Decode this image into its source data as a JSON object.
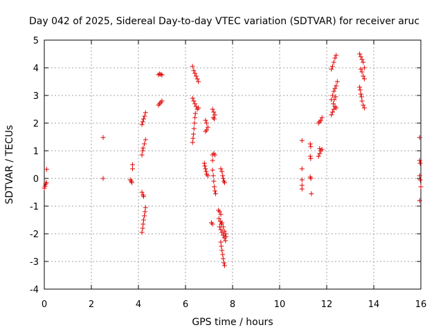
{
  "chart_data": {
    "type": "scatter",
    "title": "Day 042 of 2025, Sidereal Day-to-day VTEC variation (SDTVAR) for receiver aruc",
    "xlabel": "GPS time / hours",
    "ylabel": "SDTVAR / TECUs",
    "xlim": [
      0,
      16
    ],
    "ylim": [
      -4,
      5
    ],
    "xticks": [
      0,
      2,
      4,
      6,
      8,
      10,
      12,
      14,
      16
    ],
    "yticks": [
      -4,
      -3,
      -2,
      -1,
      0,
      1,
      2,
      3,
      4,
      5
    ],
    "grid": true,
    "marker": "plus",
    "color": "#e00000",
    "series": [
      {
        "points": [
          [
            0.0,
            -0.35
          ],
          [
            0.03,
            -0.28
          ],
          [
            0.06,
            -0.2
          ],
          [
            0.09,
            -0.15
          ],
          [
            0.1,
            0.33
          ],
          [
            2.5,
            1.48
          ],
          [
            2.5,
            0.0
          ],
          [
            3.65,
            -0.05
          ],
          [
            3.7,
            -0.1
          ],
          [
            3.72,
            -0.15
          ],
          [
            3.75,
            0.35
          ],
          [
            3.75,
            0.5
          ],
          [
            4.15,
            -0.5
          ],
          [
            4.2,
            -0.6
          ],
          [
            4.22,
            -0.65
          ],
          [
            4.15,
            -1.95
          ],
          [
            4.18,
            -1.8
          ],
          [
            4.2,
            -1.65
          ],
          [
            4.22,
            -1.5
          ],
          [
            4.25,
            -1.35
          ],
          [
            4.28,
            -1.2
          ],
          [
            4.3,
            -1.05
          ],
          [
            4.15,
            0.85
          ],
          [
            4.18,
            1.0
          ],
          [
            4.2,
            1.1
          ],
          [
            4.25,
            1.25
          ],
          [
            4.3,
            1.4
          ],
          [
            4.15,
            1.95
          ],
          [
            4.18,
            2.05
          ],
          [
            4.22,
            2.15
          ],
          [
            4.26,
            2.25
          ],
          [
            4.3,
            2.38
          ],
          [
            4.85,
            3.75
          ],
          [
            4.9,
            3.78
          ],
          [
            4.95,
            3.76
          ],
          [
            5.0,
            3.74
          ],
          [
            4.85,
            2.65
          ],
          [
            4.9,
            2.7
          ],
          [
            4.95,
            2.75
          ],
          [
            5.0,
            2.8
          ],
          [
            6.3,
            4.05
          ],
          [
            6.35,
            3.9
          ],
          [
            6.4,
            3.8
          ],
          [
            6.45,
            3.7
          ],
          [
            6.5,
            3.6
          ],
          [
            6.55,
            3.5
          ],
          [
            6.3,
            2.9
          ],
          [
            6.35,
            2.8
          ],
          [
            6.4,
            2.7
          ],
          [
            6.45,
            2.6
          ],
          [
            6.5,
            2.5
          ],
          [
            6.55,
            2.55
          ],
          [
            6.3,
            1.3
          ],
          [
            6.32,
            1.45
          ],
          [
            6.34,
            1.6
          ],
          [
            6.36,
            1.8
          ],
          [
            6.38,
            2.0
          ],
          [
            6.4,
            2.2
          ],
          [
            6.42,
            2.35
          ],
          [
            6.85,
            2.1
          ],
          [
            6.9,
            2.0
          ],
          [
            6.95,
            1.85
          ],
          [
            6.85,
            1.7
          ],
          [
            6.9,
            1.75
          ],
          [
            6.8,
            0.55
          ],
          [
            6.82,
            0.45
          ],
          [
            6.85,
            0.35
          ],
          [
            6.88,
            0.25
          ],
          [
            6.9,
            0.15
          ],
          [
            6.95,
            0.1
          ],
          [
            7.15,
            2.5
          ],
          [
            7.2,
            2.4
          ],
          [
            7.25,
            2.3
          ],
          [
            7.18,
            2.2
          ],
          [
            7.22,
            2.15
          ],
          [
            7.15,
            0.85
          ],
          [
            7.2,
            0.9
          ],
          [
            7.25,
            0.85
          ],
          [
            7.15,
            0.65
          ],
          [
            7.15,
            0.3
          ],
          [
            7.18,
            0.1
          ],
          [
            7.2,
            -0.1
          ],
          [
            7.22,
            -0.3
          ],
          [
            7.25,
            -0.45
          ],
          [
            7.28,
            -0.55
          ],
          [
            7.1,
            -1.6
          ],
          [
            7.15,
            -1.65
          ],
          [
            7.4,
            -1.15
          ],
          [
            7.45,
            -1.2
          ],
          [
            7.5,
            -1.3
          ],
          [
            7.42,
            -1.45
          ],
          [
            7.48,
            -1.55
          ],
          [
            7.52,
            -1.65
          ],
          [
            7.45,
            -1.75
          ],
          [
            7.5,
            -1.85
          ],
          [
            7.55,
            -1.95
          ],
          [
            7.6,
            -2.05
          ],
          [
            7.65,
            -2.15
          ],
          [
            7.7,
            -2.25
          ],
          [
            7.5,
            -2.3
          ],
          [
            7.52,
            -2.45
          ],
          [
            7.55,
            -2.6
          ],
          [
            7.58,
            -2.75
          ],
          [
            7.6,
            -2.9
          ],
          [
            7.63,
            -3.05
          ],
          [
            7.66,
            -3.15
          ],
          [
            7.55,
            -1.6
          ],
          [
            7.6,
            -1.75
          ],
          [
            7.65,
            -1.9
          ],
          [
            7.7,
            -2.0
          ],
          [
            7.72,
            -2.1
          ],
          [
            7.5,
            0.35
          ],
          [
            7.55,
            0.25
          ],
          [
            7.58,
            0.1
          ],
          [
            7.6,
            0.0
          ],
          [
            7.63,
            -0.1
          ],
          [
            7.66,
            -0.15
          ],
          [
            10.95,
            1.37
          ],
          [
            10.95,
            0.35
          ],
          [
            10.95,
            -0.05
          ],
          [
            10.95,
            -0.25
          ],
          [
            10.95,
            -0.38
          ],
          [
            11.3,
            1.25
          ],
          [
            11.32,
            1.15
          ],
          [
            11.3,
            0.8
          ],
          [
            11.32,
            0.72
          ],
          [
            11.3,
            0.05
          ],
          [
            11.33,
            0.0
          ],
          [
            11.35,
            -0.55
          ],
          [
            11.65,
            2.0
          ],
          [
            11.7,
            2.05
          ],
          [
            11.75,
            2.1
          ],
          [
            11.8,
            2.2
          ],
          [
            11.65,
            0.8
          ],
          [
            11.7,
            0.9
          ],
          [
            11.75,
            1.0
          ],
          [
            11.8,
            1.05
          ],
          [
            11.7,
            1.08
          ],
          [
            12.2,
            3.95
          ],
          [
            12.25,
            4.05
          ],
          [
            12.3,
            4.2
          ],
          [
            12.35,
            4.35
          ],
          [
            12.4,
            4.45
          ],
          [
            12.2,
            2.85
          ],
          [
            12.25,
            3.0
          ],
          [
            12.3,
            3.15
          ],
          [
            12.35,
            3.25
          ],
          [
            12.4,
            3.35
          ],
          [
            12.45,
            3.5
          ],
          [
            12.2,
            2.3
          ],
          [
            12.25,
            2.4
          ],
          [
            12.3,
            2.5
          ],
          [
            12.35,
            2.6
          ],
          [
            12.4,
            2.55
          ],
          [
            12.28,
            2.7
          ],
          [
            12.32,
            2.85
          ],
          [
            12.38,
            2.95
          ],
          [
            13.4,
            4.5
          ],
          [
            13.45,
            4.4
          ],
          [
            13.5,
            4.3
          ],
          [
            13.55,
            4.2
          ],
          [
            13.6,
            4.0
          ],
          [
            13.45,
            3.95
          ],
          [
            13.5,
            3.85
          ],
          [
            13.55,
            3.7
          ],
          [
            13.6,
            3.6
          ],
          [
            13.4,
            3.3
          ],
          [
            13.42,
            3.2
          ],
          [
            13.45,
            3.05
          ],
          [
            13.48,
            2.95
          ],
          [
            13.5,
            2.8
          ],
          [
            13.55,
            2.65
          ],
          [
            13.6,
            2.55
          ],
          [
            15.95,
            1.48
          ],
          [
            15.95,
            0.65
          ],
          [
            15.97,
            0.55
          ],
          [
            15.95,
            0.1
          ],
          [
            15.97,
            -0.05
          ],
          [
            16.0,
            -0.3
          ],
          [
            15.95,
            -0.8
          ]
        ]
      }
    ]
  }
}
